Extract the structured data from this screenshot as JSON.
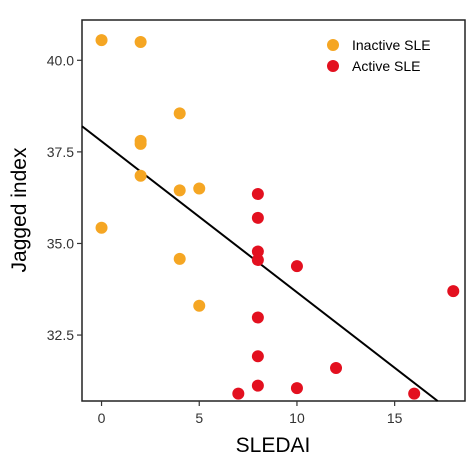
{
  "chart_data": {
    "type": "scatter",
    "title": "",
    "xlabel": "SLEDAI",
    "ylabel": "Jagged index",
    "xlim": [
      -1,
      18.6
    ],
    "ylim": [
      30.7,
      41.1
    ],
    "x_ticks": [
      0,
      5,
      10,
      15
    ],
    "y_ticks": [
      32.5,
      35.0,
      37.5,
      40.0
    ],
    "x_tick_labels": [
      "0",
      "5",
      "10",
      "15"
    ],
    "y_tick_labels": [
      "32.5",
      "35.0",
      "37.5",
      "40.0"
    ],
    "grid": false,
    "legend_position": "top-right",
    "series": [
      {
        "name": "Inactive SLE",
        "color": "#F5A623",
        "points": [
          {
            "x": 0,
            "y": 40.55
          },
          {
            "x": 2,
            "y": 40.5
          },
          {
            "x": 4,
            "y": 38.55
          },
          {
            "x": 2,
            "y": 37.8
          },
          {
            "x": 2,
            "y": 37.72
          },
          {
            "x": 2,
            "y": 36.85
          },
          {
            "x": 4,
            "y": 36.45
          },
          {
            "x": 5,
            "y": 36.5
          },
          {
            "x": 0,
            "y": 35.43
          },
          {
            "x": 4,
            "y": 34.58
          },
          {
            "x": 5,
            "y": 33.3
          }
        ]
      },
      {
        "name": "Active SLE",
        "color": "#E3101F",
        "points": [
          {
            "x": 8,
            "y": 36.35
          },
          {
            "x": 8,
            "y": 35.7
          },
          {
            "x": 8,
            "y": 34.78
          },
          {
            "x": 8,
            "y": 34.55
          },
          {
            "x": 10,
            "y": 34.38
          },
          {
            "x": 18,
            "y": 33.7
          },
          {
            "x": 8,
            "y": 32.98
          },
          {
            "x": 8,
            "y": 31.92
          },
          {
            "x": 12,
            "y": 31.6
          },
          {
            "x": 8,
            "y": 31.12
          },
          {
            "x": 10,
            "y": 31.05
          },
          {
            "x": 7,
            "y": 30.9
          },
          {
            "x": 16,
            "y": 30.9
          }
        ]
      }
    ],
    "regression_line": {
      "x": [
        -1,
        17.2
      ],
      "y": [
        38.2,
        30.7
      ],
      "color": "#000000"
    }
  }
}
